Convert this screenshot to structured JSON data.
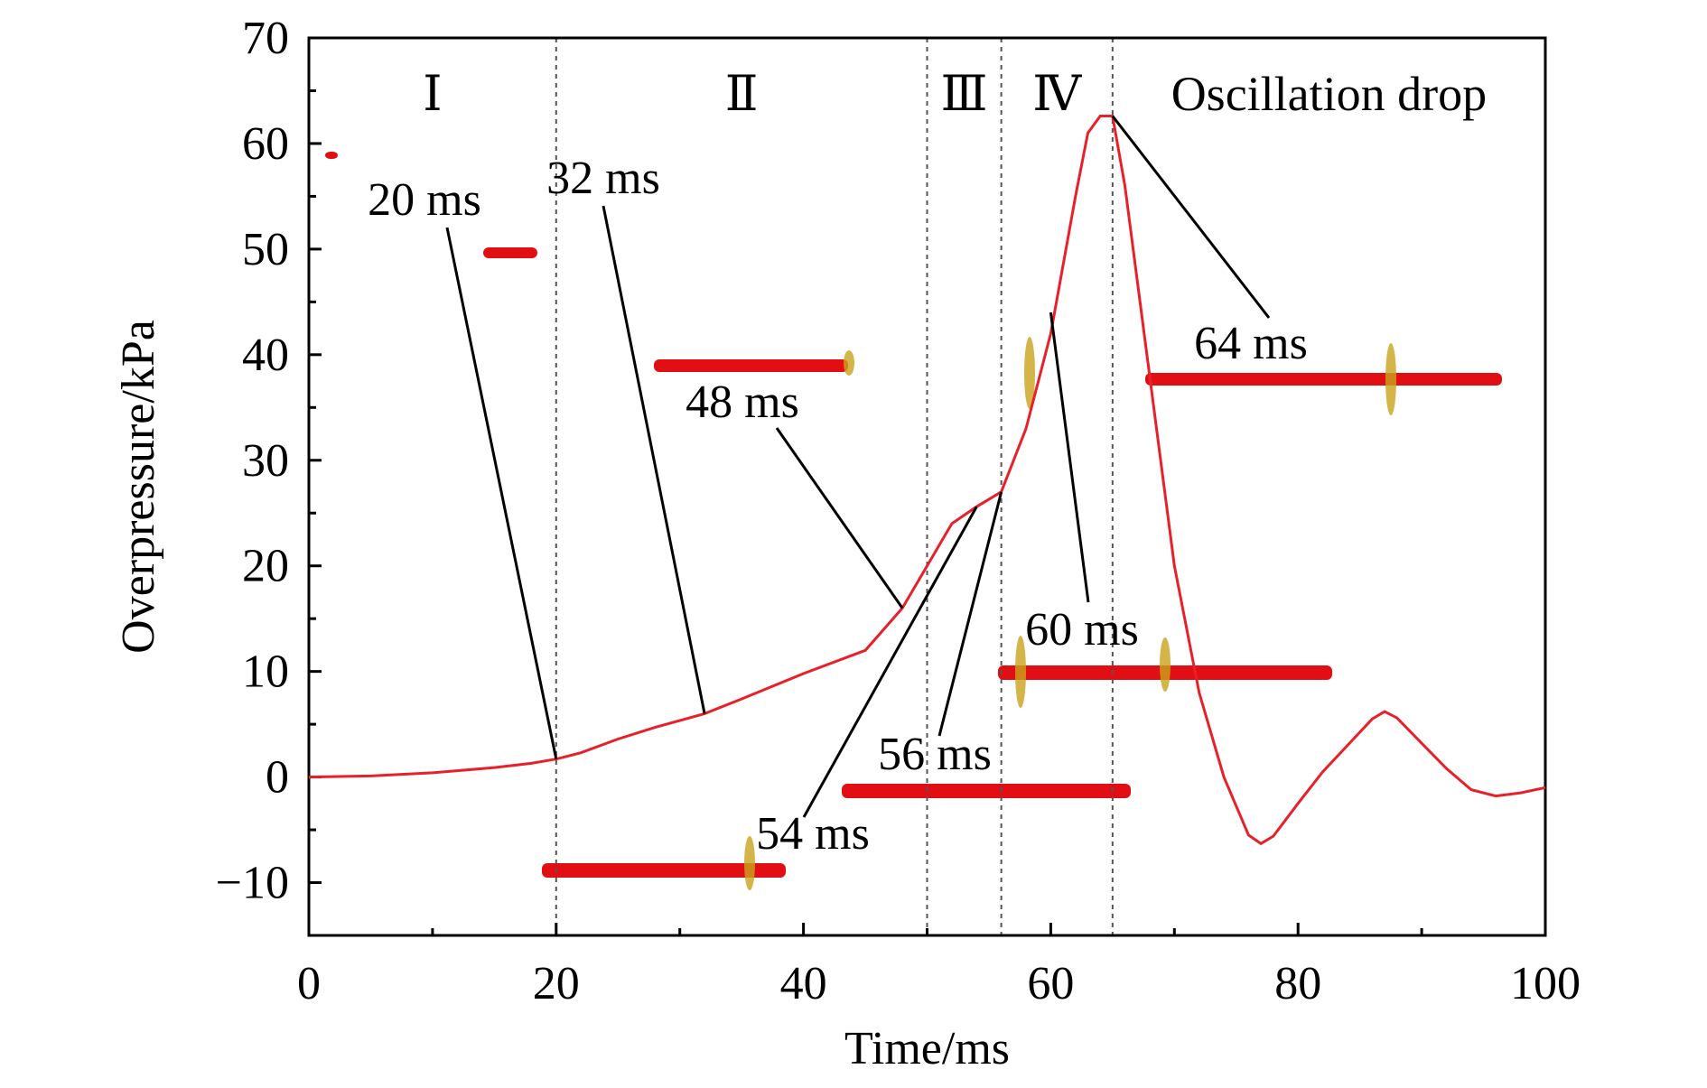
{
  "chart_data": {
    "type": "line",
    "xlabel": "Time/ms",
    "ylabel": "Overpressure/kPa",
    "xlim": [
      0,
      100
    ],
    "ylim": [
      -15,
      70
    ],
    "xticks": [
      0,
      20,
      40,
      60,
      80,
      100
    ],
    "yticks": [
      -10,
      0,
      10,
      20,
      30,
      40,
      50,
      60,
      70
    ],
    "grid": false,
    "series": [
      {
        "name": "",
        "color": "#e8202a",
        "x": [
          0,
          5,
          10,
          15,
          18,
          20,
          22,
          25,
          28,
          32,
          35,
          40,
          45,
          48,
          50,
          52,
          54,
          56,
          58,
          60,
          62,
          63,
          64,
          65,
          66,
          68,
          70,
          72,
          74,
          76,
          77,
          78,
          80,
          82,
          84,
          86,
          87,
          88,
          90,
          92,
          94,
          96,
          98,
          100
        ],
        "y": [
          0,
          0.1,
          0.4,
          0.9,
          1.3,
          1.7,
          2.3,
          3.6,
          4.7,
          6.0,
          7.4,
          9.8,
          12.0,
          16.0,
          20.0,
          24.0,
          25.6,
          27.0,
          33.0,
          42.0,
          55.0,
          61.0,
          62.6,
          62.6,
          56.0,
          38.0,
          20.0,
          8.0,
          0.0,
          -5.5,
          -6.3,
          -5.6,
          -2.5,
          0.5,
          3.0,
          5.5,
          6.2,
          5.6,
          3.2,
          0.8,
          -1.2,
          -1.8,
          -1.5,
          -1.0
        ]
      }
    ],
    "vlines": [
      20,
      50,
      56,
      65
    ],
    "stages": [
      {
        "label": "Ⅰ",
        "x": 10
      },
      {
        "label": "Ⅱ",
        "x": 35
      },
      {
        "label": "Ⅲ",
        "x": 53
      },
      {
        "label": "Ⅳ",
        "x": 60.5
      },
      {
        "label": "Oscillation drop",
        "x": 82.5
      }
    ],
    "annotations": [
      {
        "label": "20 ms",
        "x": 20,
        "y": 1.7
      },
      {
        "label": "32 ms",
        "x": 32,
        "y": 6.0
      },
      {
        "label": "48 ms",
        "x": 48,
        "y": 16.0
      },
      {
        "label": "54 ms",
        "x": 54,
        "y": 25.6
      },
      {
        "label": "56 ms",
        "x": 56,
        "y": 27.0
      },
      {
        "label": "60 ms",
        "x": 60,
        "y": 44.0
      },
      {
        "label": "64 ms",
        "x": 65,
        "y": 62.6
      }
    ]
  }
}
